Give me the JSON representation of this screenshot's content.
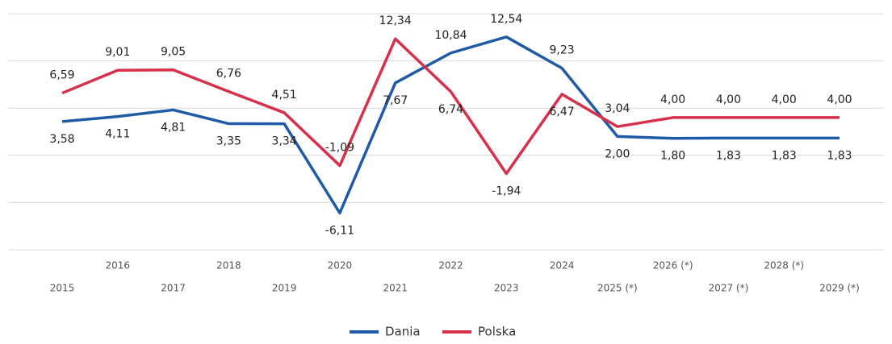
{
  "chart_data": {
    "type": "line",
    "categories": [
      "2015",
      "2016",
      "2017",
      "2018",
      "2019",
      "2020",
      "2021",
      "2022",
      "2023",
      "2024",
      "2025 (*)",
      "2026 (*)",
      "2027 (*)",
      "2028 (*)",
      "2029 (*)"
    ],
    "series": [
      {
        "name": "Dania",
        "color": "#1f5aa6",
        "values": [
          3.58,
          4.11,
          4.81,
          3.35,
          3.34,
          -6.11,
          7.67,
          10.84,
          12.54,
          9.23,
          2.0,
          1.8,
          1.83,
          1.83,
          1.83
        ],
        "value_labels": [
          "3,58",
          "4,11",
          "4,81",
          "3,35",
          "3,34",
          "-6,11",
          "7,67",
          "10,84",
          "12,54",
          "9,23",
          "2,00",
          "1,80",
          "1,83",
          "1,83",
          "1,83"
        ]
      },
      {
        "name": "Polska",
        "color": "#d6304a",
        "values": [
          6.59,
          9.01,
          9.05,
          6.76,
          4.51,
          -1.09,
          12.34,
          6.74,
          -1.94,
          6.47,
          3.04,
          4.0,
          4.0,
          4.0,
          4.0
        ],
        "value_labels": [
          "6,59",
          "9,01",
          "9,05",
          "6,76",
          "4,51",
          "-1,09",
          "12,34",
          "6,74",
          "-1,94",
          "6,47",
          "3,04",
          "4,00",
          "4,00",
          "4,00",
          "4,00"
        ]
      }
    ],
    "ylim": [
      -10,
      15
    ],
    "yticks": [
      -10,
      -5,
      0,
      5,
      10,
      15
    ],
    "grid": true,
    "legend": "bottom"
  }
}
